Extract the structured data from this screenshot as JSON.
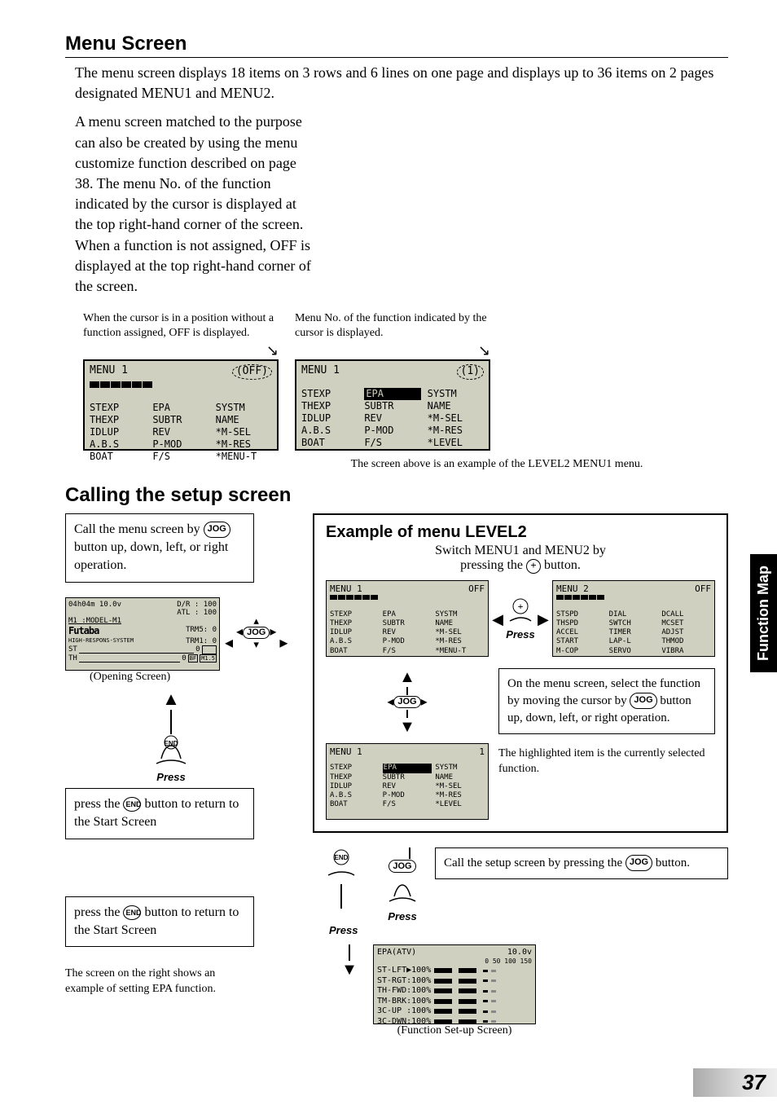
{
  "page_number": "37",
  "side_tab": "Function Map",
  "menu_screen": {
    "title": "Menu Screen",
    "para1": "The menu screen displays 18 items on 3 rows and 6 lines on one page and displays up to 36 items on 2 pages designated MENU1 and MENU2.",
    "para2": "A menu screen matched to the purpose can also be created by using the menu customize function described on page 38. The menu No. of the function indicated by the cursor is displayed at the top right-hand corner of the screen. When a function is not assigned, OFF is displayed at the top right-hand corner of the screen.",
    "caption_off": "When the cursor is in a position without a function assigned, OFF is displayed.",
    "caption_num": "Menu No. of the function indicated by the cursor is displayed.",
    "lcd1": {
      "title": "MENU 1",
      "corner": "(OFF)",
      "cells": [
        " ",
        "",
        "",
        "STEXP",
        "EPA",
        "SYSTM",
        "THEXP",
        "SUBTR",
        "NAME",
        "IDLUP",
        "REV",
        "*M-SEL",
        "A.B.S",
        "P-MOD",
        "*M-RES",
        "BOAT",
        "F/S",
        "*MENU-T"
      ]
    },
    "lcd2": {
      "title": "MENU 1",
      "corner": "(1)",
      "hl_index": 1,
      "cells": [
        "STEXP",
        "EPA",
        "SYSTM",
        "THEXP",
        "SUBTR",
        "NAME",
        "IDLUP",
        "REV",
        "*M-SEL",
        "A.B.S",
        "P-MOD",
        "*M-RES",
        "BOAT",
        "F/S",
        "*LEVEL"
      ]
    },
    "screens_note": "The screen above is an example of the LEVEL2 MENU1 menu."
  },
  "calling": {
    "title": "Calling the setup screen",
    "call_menu_box": [
      "Call the menu screen by",
      "button up, down, left, or right operation."
    ],
    "opening_caption": "(Opening Screen)",
    "press_end_box": "press the      button to return to the Start Screen",
    "press_end_box2": "press the      button to return to the Start Screen",
    "example_title": "Example of menu LEVEL2",
    "switch_text": [
      "Switch MENU1 and MENU2 by",
      "pressing the      button."
    ],
    "menu1_mini": {
      "title": "MENU 1",
      "corner": "OFF",
      "cells": [
        " ",
        "",
        "",
        "STEXP",
        "EPA",
        "SYSTM",
        "THEXP",
        "SUBTR",
        "NAME",
        "IDLUP",
        "REV",
        "*M-SEL",
        "A.B.S",
        "P-MOD",
        "*M-RES",
        "BOAT",
        "F/S",
        "*MENU-T"
      ]
    },
    "menu2_mini": {
      "title": "MENU 2",
      "corner": "OFF",
      "cells": [
        " ",
        "",
        "",
        "STSPD",
        "DIAL",
        "DCALL",
        "THSPD",
        "SWTCH",
        "MCSET",
        "ACCEL",
        "TIMER",
        "ADJST",
        "START",
        "LAP-L",
        "THMOD",
        "M-COP",
        "SERVO",
        "VIBRA"
      ]
    },
    "menu1_sel": {
      "title": "MENU 1",
      "corner": "1",
      "hl_index": 1,
      "cells": [
        "STEXP",
        "EPA",
        "SYSTM",
        "THEXP",
        "SUBTR",
        "NAME",
        "IDLUP",
        "REV",
        "*M-SEL",
        "A.B.S",
        "P-MOD",
        "*M-RES",
        "BOAT",
        "F/S",
        "*LEVEL"
      ]
    },
    "select_box": [
      "On the menu screen, select the function by moving the cursor by",
      "button up, down, left, or right operation."
    ],
    "highlighted_box": "The highlighted item is the currently selected function.",
    "call_setup_box": [
      "Call the setup screen by pressing the",
      "button."
    ],
    "epa_note": "The screen on the right shows an example of setting EPA function.",
    "func_caption": "(Function Set-up Screen)",
    "epa_lcd": {
      "title": "EPA(ATV)",
      "volt": "10.0v",
      "scale": "0   50 100 150",
      "rows": [
        {
          "label": "ST-LFT",
          "mark": "▶",
          "val": "100%"
        },
        {
          "label": "ST-RGT",
          "mark": ":",
          "val": "100%"
        },
        {
          "label": "TH-FWD",
          "mark": ":",
          "val": "100%"
        },
        {
          "label": "TM-BRK",
          "mark": ":",
          "val": "100%"
        },
        {
          "label": "3C-UP ",
          "mark": ":",
          "val": "100%"
        },
        {
          "label": "3C-DWN",
          "mark": ":",
          "val": "100%"
        }
      ]
    },
    "opening_lcd": {
      "line1": "04h04m 10.0v",
      "k1": "D/R :",
      "v1": "100",
      "k2": "ATL :",
      "v2": "100",
      "model": "M1 :MODEL-M1",
      "brand": "Futaba",
      "k3": "TRM5:",
      "v3": "0",
      "k4": "TRM1:",
      "v4": "0",
      "resp": "HIGH-RESPONS-SYSTEM",
      "st": "ST",
      "th": "TH",
      "zero": "0",
      "bf": "BF",
      "m15": "M1.5"
    },
    "press_label": "Press",
    "jog_label": "JOG",
    "end_label": "END",
    "plus_label": "+"
  }
}
